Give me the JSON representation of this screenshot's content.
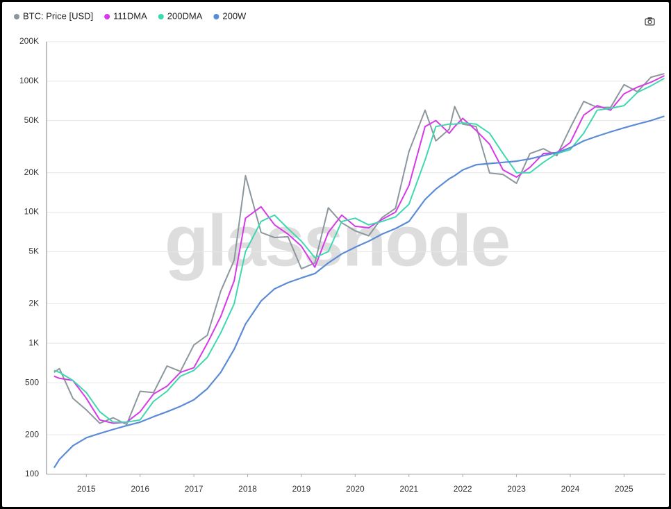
{
  "chart_data": {
    "type": "line",
    "watermark": "glassnode",
    "log_y": true,
    "grid": true,
    "xlim": [
      2014.26,
      2025.77
    ],
    "xticks": [
      2015,
      2016,
      2017,
      2018,
      2019,
      2020,
      2021,
      2022,
      2023,
      2024,
      2025
    ],
    "ylim": [
      100,
      200000
    ],
    "yticks": [
      100,
      200,
      500,
      {
        "value": 1000,
        "label": "1K"
      },
      {
        "value": 2000,
        "label": "2K"
      },
      {
        "value": 5000,
        "label": "5K"
      },
      {
        "value": 10000,
        "label": "10K"
      },
      {
        "value": 20000,
        "label": "20K"
      },
      {
        "value": 50000,
        "label": "50K"
      },
      {
        "value": 100000,
        "label": "100K"
      },
      {
        "value": 200000,
        "label": "200K"
      }
    ],
    "x": [
      2014.4,
      2014.5,
      2014.75,
      2015,
      2015.25,
      2015.5,
      2015.75,
      2016,
      2016.25,
      2016.5,
      2016.75,
      2017,
      2017.25,
      2017.5,
      2017.75,
      2017.96,
      2018.25,
      2018.5,
      2018.75,
      2019,
      2019.25,
      2019.5,
      2019.75,
      2020,
      2020.25,
      2020.5,
      2020.75,
      2021,
      2021.3,
      2021.5,
      2021.75,
      2021.85,
      2022,
      2022.25,
      2022.5,
      2022.75,
      2023,
      2023.25,
      2023.5,
      2023.75,
      2024,
      2024.25,
      2024.5,
      2024.75,
      2025,
      2025.25,
      2025.5,
      2025.75
    ],
    "series": [
      {
        "name": "BTC: Price [USD]",
        "color": "#8c979d",
        "width": 2,
        "values": [
          600,
          640,
          380,
          310,
          245,
          270,
          240,
          430,
          420,
          670,
          610,
          970,
          1150,
          2500,
          4300,
          19000,
          7000,
          6400,
          6500,
          3700,
          4100,
          10800,
          8300,
          7200,
          6600,
          9100,
          10700,
          29000,
          60000,
          35000,
          43000,
          64000,
          47000,
          45000,
          19900,
          19400,
          16600,
          28000,
          30500,
          27000,
          44000,
          70000,
          63000,
          63000,
          94000,
          83000,
          107000,
          114000
        ]
      },
      {
        "name": "111DMA",
        "color": "#d63ae8",
        "width": 2,
        "values": [
          560,
          540,
          520,
          380,
          260,
          245,
          250,
          300,
          410,
          470,
          600,
          650,
          1000,
          1600,
          3000,
          9000,
          11000,
          8000,
          6800,
          5500,
          3800,
          7000,
          9500,
          7800,
          7600,
          8800,
          10000,
          16000,
          45000,
          50000,
          40000,
          45000,
          52000,
          42000,
          33000,
          21000,
          18500,
          22000,
          28000,
          28500,
          34000,
          55000,
          65000,
          60000,
          80000,
          90000,
          98000,
          110000
        ]
      },
      {
        "name": "200DMA",
        "color": "#3ed8b0",
        "width": 2,
        "values": [
          620,
          600,
          520,
          420,
          300,
          250,
          250,
          260,
          360,
          430,
          560,
          620,
          780,
          1200,
          2000,
          5000,
          8500,
          9500,
          7500,
          6000,
          4500,
          5000,
          8500,
          9000,
          8000,
          8500,
          9200,
          11500,
          25000,
          45000,
          47000,
          47000,
          48000,
          47000,
          40000,
          28000,
          20000,
          20000,
          24000,
          28000,
          30000,
          40000,
          60000,
          62000,
          65000,
          82000,
          92000,
          105000
        ]
      },
      {
        "name": "200W",
        "color": "#5b8bd6",
        "width": 2.2,
        "values": [
          112,
          130,
          165,
          190,
          205,
          220,
          235,
          250,
          275,
          300,
          330,
          370,
          450,
          600,
          900,
          1400,
          2100,
          2600,
          2900,
          3150,
          3400,
          4100,
          4800,
          5400,
          6000,
          6800,
          7500,
          8500,
          12500,
          15000,
          18000,
          19000,
          21000,
          23000,
          23500,
          24000,
          24500,
          25500,
          27000,
          28500,
          31000,
          35000,
          38000,
          41000,
          44000,
          47000,
          50000,
          54000
        ]
      }
    ]
  }
}
